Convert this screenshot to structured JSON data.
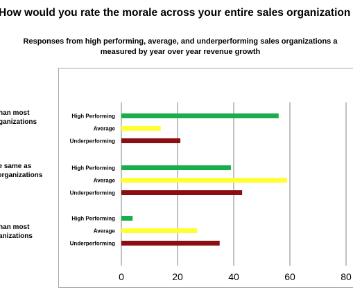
{
  "title": "How would you rate the morale across your entire sales organization",
  "subtitle_line1": "Responses from high performing, average, and underperforming sales organizations a",
  "subtitle_line2": "measured by year over year revenue growth",
  "groups": [
    {
      "line1": "r than most",
      "line2": "organizations"
    },
    {
      "line1": "the same as",
      "line2": "s organizations"
    },
    {
      "line1": "r than most",
      "line2": "rganizations"
    }
  ],
  "colors": {
    "High Performing": "#1aad4b",
    "Average": "#ffff33",
    "Underperforming": "#8b0f10",
    "grid": "#808080",
    "frame": "#a6a6a6"
  },
  "chart_data": {
    "type": "bar",
    "orientation": "horizontal",
    "title": "How would you rate the morale across your entire sales organization",
    "subtitle": "Responses from high performing, average, and underperforming sales organizations a measured by year over year revenue growth",
    "categories": [
      "High Performing",
      "Average",
      "Underperforming"
    ],
    "series": [
      {
        "values": [
          56,
          14,
          21
        ]
      },
      {
        "values": [
          39,
          59,
          43
        ]
      },
      {
        "values": [
          4,
          27,
          35
        ]
      }
    ],
    "xlim": [
      0,
      80
    ],
    "xticks": [
      0,
      20,
      40,
      60,
      80
    ],
    "xtick_labels": [
      "0",
      "20",
      "40",
      "60",
      "80"
    ],
    "grid": "vertical",
    "legend": "none"
  }
}
